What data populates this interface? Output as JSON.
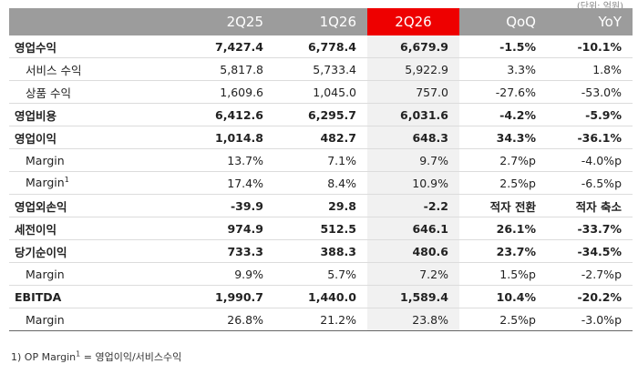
{
  "header": {
    "corner": "",
    "cols": [
      "2Q25",
      "1Q26",
      "2Q26",
      "QoQ",
      "YoY"
    ]
  },
  "unit_note": "(단위: 억원)",
  "rows": [
    {
      "label": "영업수익",
      "sup": "",
      "v": [
        "7,427.4",
        "6,778.4",
        "6,679.9",
        "-1.5%",
        "-10.1%"
      ]
    },
    {
      "label": "서비스 수익",
      "sup": "",
      "v": [
        "5,817.8",
        "5,733.4",
        "5,922.9",
        "3.3%",
        "1.8%"
      ]
    },
    {
      "label": "상품 수익",
      "sup": "",
      "v": [
        "1,609.6",
        "1,045.0",
        "757.0",
        "-27.6%",
        "-53.0%"
      ]
    },
    {
      "label": "영업비용",
      "sup": "",
      "v": [
        "6,412.6",
        "6,295.7",
        "6,031.6",
        "-4.2%",
        "-5.9%"
      ]
    },
    {
      "label": "영업이익",
      "sup": "",
      "v": [
        "1,014.8",
        "482.7",
        "648.3",
        "34.3%",
        "-36.1%"
      ]
    },
    {
      "label": "Margin",
      "sup": "",
      "v": [
        "13.7%",
        "7.1%",
        "9.7%",
        "2.7%p",
        "-4.0%p"
      ]
    },
    {
      "label": "Margin",
      "sup": "1",
      "v": [
        "17.4%",
        "8.4%",
        "10.9%",
        "2.5%p",
        "-6.5%p"
      ]
    },
    {
      "label": "영업외손익",
      "sup": "",
      "v": [
        "-39.9",
        "29.8",
        "-2.2",
        "적자 전환",
        "적자 축소"
      ]
    },
    {
      "label": "세전이익",
      "sup": "",
      "v": [
        "974.9",
        "512.5",
        "646.1",
        "26.1%",
        "-33.7%"
      ]
    },
    {
      "label": "당기순이익",
      "sup": "",
      "v": [
        "733.3",
        "388.3",
        "480.6",
        "23.7%",
        "-34.5%"
      ]
    },
    {
      "label": "Margin",
      "sup": "",
      "v": [
        "9.9%",
        "5.7%",
        "7.2%",
        "1.5%p",
        "-2.7%p"
      ]
    },
    {
      "label": "EBITDA",
      "sup": "",
      "v": [
        "1,990.7",
        "1,440.0",
        "1,589.4",
        "10.4%",
        "-20.2%"
      ]
    },
    {
      "label": "Margin",
      "sup": "",
      "v": [
        "26.8%",
        "21.2%",
        "23.8%",
        "2.5%p",
        "-3.0%p"
      ]
    }
  ],
  "footnote": {
    "prefix": "1) OP Margin",
    "sup": "1",
    "suffix": " = 영업이익/서비스수익"
  }
}
